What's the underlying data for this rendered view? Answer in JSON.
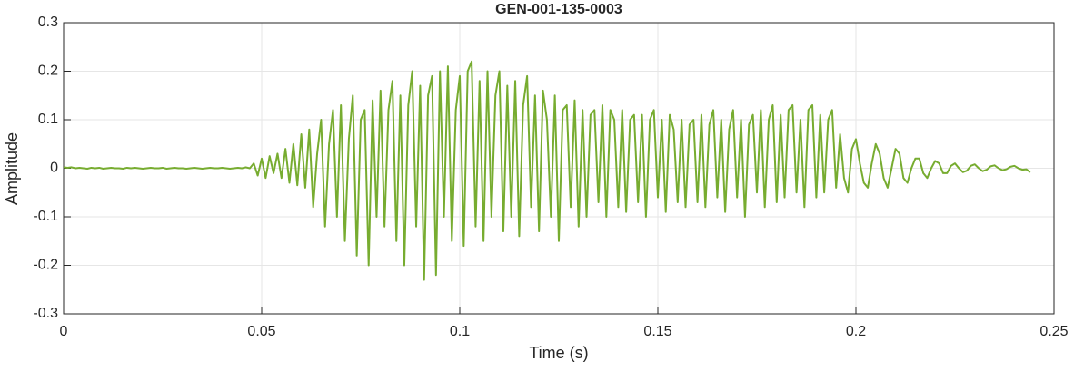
{
  "chart_data": {
    "type": "line",
    "title": "GEN-001-135-0003",
    "x_label": "Time (s)",
    "y_label": "Amplitude",
    "xlim": [
      0,
      0.25
    ],
    "xticks": [
      0,
      0.05,
      0.1,
      0.15,
      0.2,
      0.25
    ],
    "ylim": [
      -0.3,
      0.3
    ],
    "yticks": [
      -0.3,
      -0.2,
      -0.1,
      0,
      0.1,
      0.2,
      0.3
    ],
    "grid": true,
    "x": [
      0,
      0.001,
      0.002,
      0.003,
      0.004,
      0.005,
      0.006,
      0.007,
      0.008,
      0.009,
      0.01,
      0.011,
      0.012,
      0.013,
      0.014,
      0.015,
      0.016,
      0.017,
      0.018,
      0.019,
      0.02,
      0.021,
      0.022,
      0.023,
      0.024,
      0.025,
      0.026,
      0.027,
      0.028,
      0.029,
      0.03,
      0.031,
      0.032,
      0.033,
      0.034,
      0.035,
      0.036,
      0.037,
      0.038,
      0.039,
      0.04,
      0.041,
      0.042,
      0.043,
      0.044,
      0.045,
      0.046,
      0.047,
      0.048,
      0.049,
      0.05,
      0.051,
      0.052,
      0.053,
      0.054,
      0.055,
      0.056,
      0.057,
      0.058,
      0.059,
      0.06,
      0.061,
      0.062,
      0.063,
      0.064,
      0.065,
      0.066,
      0.067,
      0.068,
      0.069,
      0.07,
      0.071,
      0.072,
      0.073,
      0.074,
      0.075,
      0.076,
      0.077,
      0.078,
      0.079,
      0.08,
      0.081,
      0.082,
      0.083,
      0.084,
      0.085,
      0.086,
      0.087,
      0.088,
      0.089,
      0.09,
      0.091,
      0.092,
      0.093,
      0.094,
      0.095,
      0.096,
      0.097,
      0.098,
      0.099,
      0.1,
      0.101,
      0.102,
      0.103,
      0.104,
      0.105,
      0.106,
      0.107,
      0.108,
      0.109,
      0.11,
      0.111,
      0.112,
      0.113,
      0.114,
      0.115,
      0.116,
      0.117,
      0.118,
      0.119,
      0.12,
      0.121,
      0.122,
      0.123,
      0.124,
      0.125,
      0.126,
      0.127,
      0.128,
      0.129,
      0.13,
      0.131,
      0.132,
      0.133,
      0.134,
      0.135,
      0.136,
      0.137,
      0.138,
      0.139,
      0.14,
      0.141,
      0.142,
      0.143,
      0.144,
      0.145,
      0.146,
      0.147,
      0.148,
      0.149,
      0.15,
      0.151,
      0.152,
      0.153,
      0.154,
      0.155,
      0.156,
      0.157,
      0.158,
      0.159,
      0.16,
      0.161,
      0.162,
      0.163,
      0.164,
      0.165,
      0.166,
      0.167,
      0.168,
      0.169,
      0.17,
      0.171,
      0.172,
      0.173,
      0.174,
      0.175,
      0.176,
      0.177,
      0.178,
      0.179,
      0.18,
      0.181,
      0.182,
      0.183,
      0.184,
      0.185,
      0.186,
      0.187,
      0.188,
      0.189,
      0.19,
      0.191,
      0.192,
      0.193,
      0.194,
      0.195,
      0.196,
      0.197,
      0.198,
      0.199,
      0.2,
      0.201,
      0.202,
      0.203,
      0.204,
      0.205,
      0.206,
      0.207,
      0.208,
      0.209,
      0.21,
      0.211,
      0.212,
      0.213,
      0.214,
      0.215,
      0.216,
      0.217,
      0.218,
      0.219,
      0.22,
      0.221,
      0.222,
      0.223,
      0.224,
      0.225,
      0.226,
      0.227,
      0.228,
      0.229,
      0.23,
      0.231,
      0.232,
      0.233,
      0.234,
      0.235,
      0.236,
      0.237,
      0.238,
      0.239,
      0.24,
      0.241,
      0.242,
      0.243,
      0.244
    ],
    "series": [
      {
        "color": "#77ac30",
        "values": [
          0.002,
          0.001,
          0.002,
          0,
          0.001,
          0,
          -0.001,
          0.001,
          0,
          0.001,
          -0.001,
          0,
          0.001,
          0,
          0,
          -0.001,
          0.001,
          0,
          0.001,
          0,
          -0.001,
          0,
          0.001,
          0,
          0,
          0.001,
          -0.001,
          0,
          0.001,
          0,
          0,
          -0.001,
          0,
          0.001,
          0,
          -0.001,
          0,
          0.001,
          0,
          0,
          0.001,
          0,
          -0.001,
          0,
          0.001,
          0,
          0.002,
          0,
          0.01,
          -0.015,
          0.02,
          -0.02,
          0.025,
          -0.01,
          0.03,
          -0.02,
          0.04,
          -0.03,
          0.05,
          -0.035,
          0.07,
          -0.04,
          0.08,
          -0.08,
          0.03,
          0.1,
          -0.12,
          0.05,
          0.12,
          -0.1,
          0.13,
          -0.15,
          0.06,
          0.15,
          -0.18,
          0.1,
          0.12,
          -0.2,
          0.14,
          -0.1,
          0.16,
          -0.12,
          0.12,
          0.18,
          -0.15,
          0.15,
          -0.2,
          0.13,
          0.2,
          -0.12,
          0.17,
          -0.23,
          0.15,
          0.19,
          -0.22,
          0.2,
          -0.1,
          0.21,
          -0.15,
          0.12,
          0.19,
          -0.16,
          0.2,
          0.22,
          -0.12,
          0.18,
          -0.15,
          0.2,
          -0.1,
          0.15,
          0.2,
          -0.13,
          0.17,
          -0.1,
          0.18,
          -0.14,
          0.13,
          0.19,
          -0.08,
          0.15,
          -0.13,
          0.16,
          0.1,
          -0.1,
          0.15,
          -0.15,
          0.12,
          0.13,
          -0.08,
          0.14,
          -0.12,
          0.12,
          -0.1,
          0.11,
          0.12,
          -0.07,
          0.13,
          -0.1,
          0.12,
          0.1,
          -0.08,
          0.12,
          -0.09,
          0.1,
          0.11,
          -0.07,
          0.11,
          -0.1,
          0.1,
          0.12,
          -0.06,
          0.1,
          -0.09,
          0.11,
          0.08,
          -0.07,
          0.1,
          -0.08,
          0.09,
          0.1,
          -0.07,
          0.11,
          -0.08,
          0.09,
          0.12,
          -0.06,
          0.1,
          -0.09,
          0.08,
          0.12,
          -0.06,
          0.1,
          -0.1,
          0.09,
          0.11,
          -0.05,
          0.12,
          -0.08,
          0.1,
          0.13,
          -0.07,
          0.11,
          -0.06,
          0.12,
          0.13,
          -0.05,
          0.1,
          -0.08,
          0.12,
          0.13,
          -0.06,
          0.11,
          -0.05,
          0.1,
          0.12,
          -0.04,
          0.07,
          -0.02,
          -0.05,
          0.04,
          0.06,
          0.01,
          -0.03,
          -0.04,
          0.01,
          0.05,
          0.03,
          -0.02,
          -0.04,
          0,
          0.04,
          0.03,
          -0.02,
          -0.03,
          0,
          0.02,
          0.02,
          -0.01,
          -0.02,
          0,
          0.015,
          0.01,
          -0.01,
          -0.01,
          0.005,
          0.01,
          0,
          -0.008,
          -0.005,
          0.005,
          0.008,
          0,
          -0.006,
          -0.003,
          0.004,
          0.006,
          0,
          -0.004,
          -0.002,
          0.003,
          0.005,
          0,
          -0.003,
          -0.002,
          -0.008
        ]
      }
    ]
  }
}
